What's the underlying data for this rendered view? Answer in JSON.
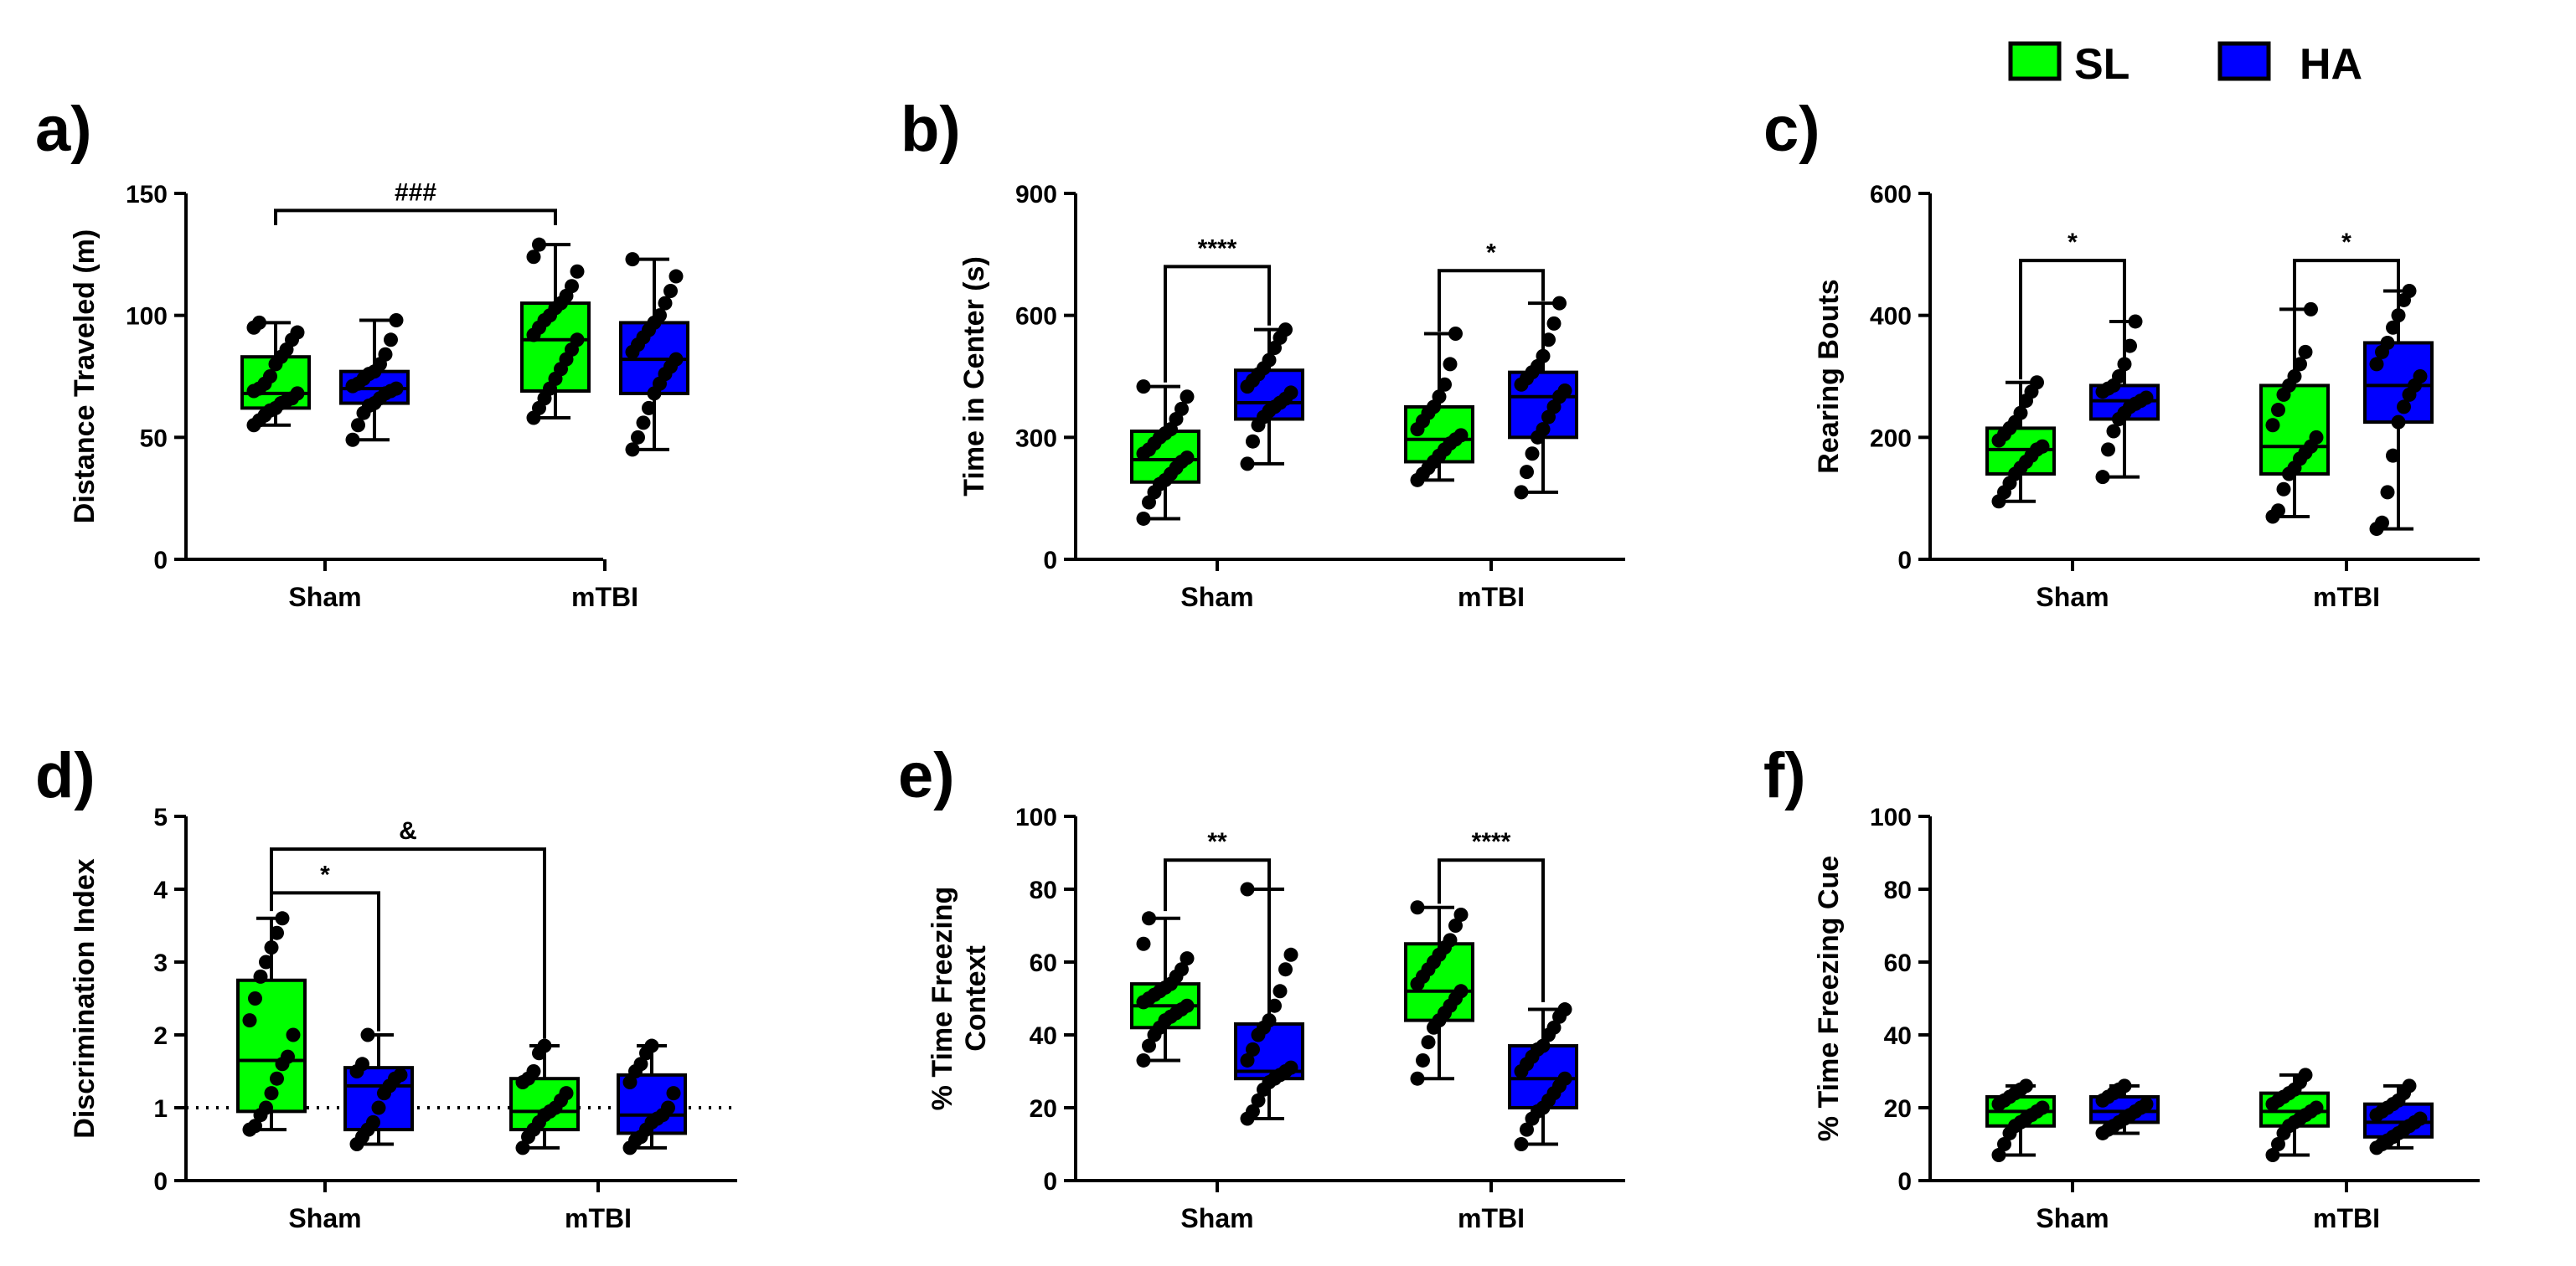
{
  "legend": {
    "items": [
      {
        "label": "SL",
        "color": "#00ff00"
      },
      {
        "label": "HA",
        "color": "#0000ff"
      }
    ]
  },
  "chart_data": [
    {
      "letter": "a)",
      "type": "box",
      "ylabel": "Distance Traveled (m)",
      "categories": [
        "Sham",
        "mTBI"
      ],
      "ylim": [
        0,
        150
      ],
      "yticks": [
        0,
        50,
        100,
        150
      ],
      "series": [
        {
          "name": "SL",
          "color": "#00ff00",
          "boxes": [
            {
              "min": 55,
              "q1": 62,
              "median": 68,
              "q3": 83,
              "max": 97,
              "points": [
                55,
                57,
                59,
                61,
                62,
                64,
                65,
                66,
                68,
                69,
                70,
                72,
                75,
                80,
                83,
                86,
                90,
                93,
                95,
                97
              ]
            },
            {
              "min": 58,
              "q1": 69,
              "median": 90,
              "q3": 105,
              "max": 129,
              "points": [
                58,
                62,
                66,
                70,
                74,
                78,
                82,
                86,
                90,
                92,
                95,
                98,
                100,
                103,
                105,
                108,
                112,
                118,
                124,
                129
              ]
            }
          ]
        },
        {
          "name": "HA",
          "color": "#0000ff",
          "boxes": [
            {
              "min": 49,
              "q1": 64,
              "median": 70,
              "q3": 77,
              "max": 98,
              "points": [
                49,
                55,
                60,
                63,
                64,
                66,
                68,
                69,
                70,
                71,
                72,
                74,
                76,
                77,
                80,
                84,
                90,
                98
              ]
            },
            {
              "min": 45,
              "q1": 68,
              "median": 82,
              "q3": 97,
              "max": 123,
              "points": [
                45,
                50,
                56,
                62,
                68,
                72,
                76,
                79,
                82,
                85,
                88,
                91,
                94,
                97,
                100,
                105,
                110,
                116,
                123
              ]
            }
          ]
        }
      ],
      "brackets": [
        {
          "from": [
            0,
            0
          ],
          "to": [
            1,
            0
          ],
          "label": "###",
          "y": 143,
          "left_drop": 6,
          "right_drop": 6
        }
      ],
      "refline": null
    },
    {
      "letter": "b)",
      "type": "box",
      "ylabel": "Time in Center (s)",
      "categories": [
        "Sham",
        "mTBI"
      ],
      "ylim": [
        0,
        900
      ],
      "yticks": [
        0,
        300,
        600,
        900
      ],
      "series": [
        {
          "name": "SL",
          "color": "#00ff00",
          "boxes": [
            {
              "min": 100,
              "q1": 190,
              "median": 245,
              "q3": 315,
              "max": 425,
              "points": [
                100,
                140,
                165,
                185,
                195,
                210,
                225,
                240,
                250,
                260,
                270,
                285,
                300,
                310,
                320,
                345,
                370,
                400,
                425
              ]
            },
            {
              "min": 195,
              "q1": 240,
              "median": 295,
              "q3": 375,
              "max": 555,
              "points": [
                195,
                210,
                225,
                240,
                255,
                270,
                285,
                295,
                305,
                320,
                340,
                360,
                375,
                400,
                430,
                480,
                555
              ]
            }
          ]
        },
        {
          "name": "HA",
          "color": "#0000ff",
          "boxes": [
            {
              "min": 235,
              "q1": 345,
              "median": 385,
              "q3": 465,
              "max": 565,
              "points": [
                235,
                290,
                330,
                350,
                365,
                375,
                385,
                395,
                410,
                425,
                440,
                455,
                470,
                490,
                520,
                545,
                565
              ]
            },
            {
              "min": 165,
              "q1": 300,
              "median": 400,
              "q3": 460,
              "max": 630,
              "points": [
                165,
                215,
                260,
                300,
                320,
                350,
                375,
                400,
                415,
                430,
                445,
                460,
                475,
                500,
                540,
                580,
                630
              ]
            }
          ]
        }
      ],
      "brackets": [
        {
          "from": [
            0,
            0
          ],
          "to": [
            0,
            1
          ],
          "label": "****",
          "y": 720,
          "left_drop": 285,
          "right_drop": 145
        },
        {
          "from": [
            1,
            0
          ],
          "to": [
            1,
            1
          ],
          "label": "*",
          "y": 710,
          "left_drop": 150,
          "right_drop": 75
        }
      ],
      "refline": null
    },
    {
      "letter": "c)",
      "type": "box",
      "ylabel": "Rearing Bouts",
      "categories": [
        "Sham",
        "mTBI"
      ],
      "ylim": [
        0,
        600
      ],
      "yticks": [
        0,
        200,
        400,
        600
      ],
      "series": [
        {
          "name": "SL",
          "color": "#00ff00",
          "boxes": [
            {
              "min": 95,
              "q1": 140,
              "median": 180,
              "q3": 215,
              "max": 290,
              "points": [
                95,
                110,
                125,
                140,
                150,
                160,
                170,
                180,
                185,
                195,
                205,
                215,
                225,
                240,
                260,
                275,
                290
              ]
            },
            {
              "min": 70,
              "q1": 140,
              "median": 185,
              "q3": 285,
              "max": 410,
              "points": [
                70,
                80,
                115,
                140,
                150,
                165,
                175,
                185,
                200,
                220,
                245,
                270,
                285,
                300,
                320,
                340,
                410
              ]
            }
          ]
        },
        {
          "name": "HA",
          "color": "#0000ff",
          "boxes": [
            {
              "min": 135,
              "q1": 230,
              "median": 260,
              "q3": 285,
              "max": 390,
              "points": [
                135,
                180,
                210,
                230,
                240,
                250,
                255,
                260,
                265,
                275,
                280,
                285,
                300,
                320,
                350,
                390
              ]
            },
            {
              "min": 50,
              "q1": 225,
              "median": 285,
              "q3": 355,
              "max": 440,
              "points": [
                50,
                60,
                110,
                170,
                225,
                250,
                270,
                285,
                300,
                320,
                340,
                355,
                380,
                400,
                425,
                440
              ]
            }
          ]
        }
      ],
      "brackets": [
        {
          "from": [
            0,
            0
          ],
          "to": [
            0,
            1
          ],
          "label": "*",
          "y": 490,
          "left_drop": 195,
          "right_drop": 100
        },
        {
          "from": [
            1,
            0
          ],
          "to": [
            1,
            1
          ],
          "label": "*",
          "y": 490,
          "left_drop": 80,
          "right_drop": 50
        }
      ],
      "refline": null
    },
    {
      "letter": "d)",
      "type": "box",
      "ylabel": "Discrimination Index",
      "categories": [
        "Sham",
        "mTBI"
      ],
      "ylim": [
        0,
        5
      ],
      "yticks": [
        0,
        1,
        2,
        3,
        4,
        5
      ],
      "series": [
        {
          "name": "SL",
          "color": "#00ff00",
          "boxes": [
            {
              "min": 0.7,
              "q1": 0.95,
              "median": 1.65,
              "q3": 2.75,
              "max": 3.6,
              "points": [
                0.7,
                0.75,
                0.9,
                1.0,
                1.2,
                1.4,
                1.6,
                1.7,
                2.0,
                2.2,
                2.5,
                2.8,
                3.0,
                3.2,
                3.4,
                3.6
              ]
            },
            {
              "min": 0.45,
              "q1": 0.7,
              "median": 0.95,
              "q3": 1.4,
              "max": 1.85,
              "points": [
                0.45,
                0.6,
                0.7,
                0.8,
                0.9,
                0.95,
                1.0,
                1.1,
                1.2,
                1.35,
                1.4,
                1.5,
                1.75,
                1.85
              ]
            }
          ]
        },
        {
          "name": "HA",
          "color": "#0000ff",
          "boxes": [
            {
              "min": 0.5,
              "q1": 0.7,
              "median": 1.3,
              "q3": 1.55,
              "max": 2.0,
              "points": [
                0.5,
                0.6,
                0.7,
                0.8,
                1.0,
                1.2,
                1.3,
                1.4,
                1.45,
                1.5,
                1.6,
                2.0
              ]
            },
            {
              "min": 0.45,
              "q1": 0.65,
              "median": 0.9,
              "q3": 1.45,
              "max": 1.85,
              "points": [
                0.45,
                0.55,
                0.6,
                0.7,
                0.8,
                0.85,
                0.9,
                1.0,
                1.2,
                1.35,
                1.5,
                1.6,
                1.75,
                1.85
              ]
            }
          ]
        }
      ],
      "brackets": [
        {
          "from": [
            0,
            0
          ],
          "to": [
            0,
            1
          ],
          "label": "*",
          "y": 3.95,
          "left_drop": 0.25,
          "right_drop": 1.9
        },
        {
          "from": [
            0,
            0
          ],
          "to": [
            1,
            0
          ],
          "label": "&",
          "y": 4.55,
          "left_drop": 0.8,
          "right_drop": 2.6
        }
      ],
      "refline": 1
    },
    {
      "letter": "e)",
      "type": "box",
      "ylabel": "% Time Freezing Context",
      "categories": [
        "Sham",
        "mTBI"
      ],
      "ylim": [
        0,
        100
      ],
      "yticks": [
        0,
        20,
        40,
        60,
        80,
        100
      ],
      "series": [
        {
          "name": "SL",
          "color": "#00ff00",
          "boxes": [
            {
              "min": 33,
              "q1": 42,
              "median": 48,
              "q3": 54,
              "max": 72,
              "points": [
                33,
                37,
                40,
                42,
                44,
                45,
                46,
                47,
                48,
                49,
                50,
                51,
                52,
                53,
                54,
                56,
                58,
                61,
                65,
                72
              ]
            },
            {
              "min": 28,
              "q1": 44,
              "median": 52,
              "q3": 65,
              "max": 75,
              "points": [
                28,
                33,
                38,
                42,
                44,
                46,
                48,
                50,
                52,
                54,
                56,
                58,
                60,
                62,
                64,
                66,
                70,
                73,
                75
              ]
            }
          ]
        },
        {
          "name": "HA",
          "color": "#0000ff",
          "boxes": [
            {
              "min": 17,
              "q1": 28,
              "median": 30,
              "q3": 43,
              "max": 80,
              "points": [
                17,
                19,
                22,
                25,
                27,
                28,
                29,
                30,
                31,
                33,
                36,
                40,
                42,
                44,
                48,
                52,
                58,
                62,
                80
              ]
            },
            {
              "min": 10,
              "q1": 20,
              "median": 28,
              "q3": 37,
              "max": 47,
              "points": [
                10,
                14,
                17,
                19,
                20,
                22,
                24,
                26,
                28,
                30,
                32,
                34,
                36,
                37,
                40,
                42,
                45,
                47
              ]
            }
          ]
        }
      ],
      "brackets": [
        {
          "from": [
            0,
            0
          ],
          "to": [
            0,
            1
          ],
          "label": "**",
          "y": 88,
          "left_drop": 14,
          "right_drop": 8
        },
        {
          "from": [
            1,
            0
          ],
          "to": [
            1,
            1
          ],
          "label": "****",
          "y": 88,
          "left_drop": 12,
          "right_drop": 39
        }
      ],
      "refline": null
    },
    {
      "letter": "f)",
      "type": "box",
      "ylabel": "% Time Freezing Cue",
      "categories": [
        "Sham",
        "mTBI"
      ],
      "ylim": [
        0,
        100
      ],
      "yticks": [
        0,
        20,
        40,
        60,
        80,
        100
      ],
      "series": [
        {
          "name": "SL",
          "color": "#00ff00",
          "boxes": [
            {
              "min": 7,
              "q1": 15,
              "median": 19,
              "q3": 23,
              "max": 26,
              "points": [
                7,
                10,
                13,
                15,
                16,
                17,
                18,
                19,
                20,
                21,
                22,
                23,
                24,
                25,
                26
              ]
            },
            {
              "min": 7,
              "q1": 15,
              "median": 19,
              "q3": 24,
              "max": 29,
              "points": [
                7,
                10,
                13,
                15,
                16,
                17,
                18,
                19,
                20,
                21,
                22,
                23,
                24,
                25,
                27,
                29
              ]
            }
          ]
        },
        {
          "name": "HA",
          "color": "#0000ff",
          "boxes": [
            {
              "min": 13,
              "q1": 16,
              "median": 19,
              "q3": 23,
              "max": 26,
              "points": [
                13,
                14,
                15,
                16,
                17,
                18,
                19,
                20,
                21,
                22,
                23,
                24,
                25,
                26
              ]
            },
            {
              "min": 9,
              "q1": 12,
              "median": 16,
              "q3": 21,
              "max": 26,
              "points": [
                9,
                10,
                11,
                12,
                13,
                14,
                15,
                16,
                17,
                18,
                19,
                20,
                21,
                22,
                24,
                26
              ]
            }
          ]
        }
      ],
      "brackets": [],
      "refline": null
    }
  ]
}
